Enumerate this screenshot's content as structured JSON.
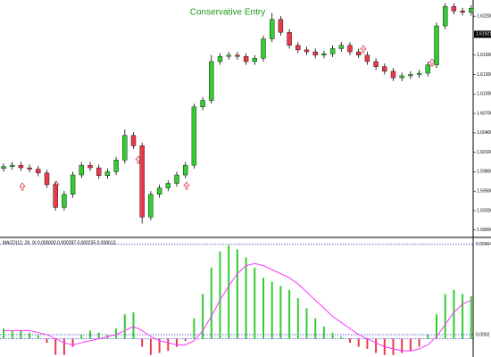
{
  "chart_data": [
    {
      "type": "candlestick",
      "annotation": "Conservative Entry",
      "open": [
        1.5985,
        1.5988,
        1.599,
        1.5986,
        1.5984,
        1.5978,
        1.596,
        1.5925,
        1.5945,
        1.5975,
        1.599,
        1.5986,
        1.5974,
        1.598,
        1.5998,
        1.6036,
        1.602,
        1.591,
        1.5945,
        1.5955,
        1.5962,
        1.5975,
        1.599,
        1.608,
        1.609,
        1.615,
        1.6158,
        1.616,
        1.6158,
        1.615,
        1.6155,
        1.6185,
        1.6215,
        1.6195,
        1.6175,
        1.6168,
        1.6165,
        1.616,
        1.6162,
        1.617,
        1.6175,
        1.6165,
        1.616,
        1.615,
        1.6142,
        1.6135,
        1.6125,
        1.6128,
        1.613,
        1.6132,
        1.6145,
        1.6205,
        1.6235,
        1.6228,
        1.6226
      ],
      "high": [
        1.5993,
        1.5995,
        1.5995,
        1.5991,
        1.5989,
        1.5983,
        1.5965,
        1.595,
        1.598,
        1.5995,
        1.5995,
        1.5991,
        1.5985,
        1.6003,
        1.6045,
        1.6041,
        1.6025,
        1.595,
        1.596,
        1.5967,
        1.598,
        1.5995,
        1.6085,
        1.6095,
        1.616,
        1.6163,
        1.6165,
        1.6165,
        1.6163,
        1.616,
        1.619,
        1.6225,
        1.622,
        1.62,
        1.618,
        1.6173,
        1.617,
        1.6167,
        1.6175,
        1.618,
        1.618,
        1.617,
        1.6165,
        1.6155,
        1.6147,
        1.614,
        1.6133,
        1.6135,
        1.6137,
        1.615,
        1.621,
        1.624,
        1.624,
        1.6233,
        1.6237
      ],
      "low": [
        1.598,
        1.5983,
        1.5981,
        1.5979,
        1.5973,
        1.5955,
        1.592,
        1.592,
        1.594,
        1.597,
        1.5981,
        1.5969,
        1.5969,
        1.5975,
        1.5993,
        1.6015,
        1.59,
        1.5905,
        1.594,
        1.595,
        1.5957,
        1.597,
        1.5985,
        1.6075,
        1.6085,
        1.6145,
        1.6153,
        1.6153,
        1.6145,
        1.6145,
        1.615,
        1.618,
        1.619,
        1.617,
        1.6163,
        1.616,
        1.6155,
        1.6155,
        1.6157,
        1.6165,
        1.616,
        1.6155,
        1.6145,
        1.6137,
        1.613,
        1.612,
        1.612,
        1.6123,
        1.6125,
        1.6127,
        1.614,
        1.62,
        1.6223,
        1.6221,
        1.6221
      ],
      "close": [
        1.5988,
        1.599,
        1.5986,
        1.5984,
        1.5978,
        1.596,
        1.5925,
        1.5945,
        1.5975,
        1.599,
        1.5986,
        1.5974,
        1.598,
        1.5998,
        1.6036,
        1.602,
        1.591,
        1.5945,
        1.5955,
        1.5962,
        1.5975,
        1.599,
        1.608,
        1.609,
        1.615,
        1.6158,
        1.616,
        1.6158,
        1.615,
        1.6155,
        1.6185,
        1.6215,
        1.6195,
        1.6175,
        1.6168,
        1.6165,
        1.616,
        1.6162,
        1.617,
        1.6175,
        1.6165,
        1.616,
        1.615,
        1.6142,
        1.6135,
        1.6125,
        1.6128,
        1.613,
        1.6132,
        1.6145,
        1.6205,
        1.6235,
        1.6228,
        1.6226,
        1.6232
      ],
      "up_color": "#33cc33",
      "down_color": "#e83a4a",
      "ylim": [
        1.588,
        1.6245
      ],
      "yticks": [
        {
          "value": 1.589,
          "label": "1.58900"
        },
        {
          "value": 1.592,
          "label": "1.59200"
        },
        {
          "value": 1.595,
          "label": "1.59500"
        },
        {
          "value": 1.598,
          "label": "1.59800"
        },
        {
          "value": 1.601,
          "label": "1.60100"
        },
        {
          "value": 1.604,
          "label": "1.60400"
        },
        {
          "value": 1.607,
          "label": "1.60700"
        },
        {
          "value": 1.61,
          "label": "1.61000"
        },
        {
          "value": 1.613,
          "label": "1.61300"
        },
        {
          "value": 1.616,
          "label": "1.61600"
        },
        {
          "value": 1.622,
          "label": "1.62200"
        }
      ],
      "price_marker": 1.61921
    },
    {
      "type": "macd",
      "label": "MACD(12, 26, 9) 0.000000 0.000287 0.000235 0.000613",
      "values": [
        0.0005,
        0.0004,
        0.0004,
        0.0003,
        0.0002,
        -0.0002,
        -0.0008,
        -0.0008,
        -0.0004,
        0.0002,
        0.0004,
        0.0003,
        0.0002,
        0.0005,
        0.0012,
        0.0013,
        -0.0004,
        -0.0008,
        -0.0007,
        -0.0006,
        -0.0004,
        -0.0001,
        0.001,
        0.0022,
        0.0035,
        0.0043,
        0.0046,
        0.0044,
        0.004,
        0.0035,
        0.003,
        0.0028,
        0.0026,
        0.0024,
        0.002,
        0.0015,
        0.001,
        0.0006,
        0.0003,
        0.0001,
        -0.0002,
        -0.0004,
        -0.0005,
        -0.0007,
        -0.0008,
        -0.0008,
        -0.0007,
        -0.0006,
        -0.0004,
        0.0002,
        0.0012,
        0.0022,
        0.0024,
        0.0022,
        0.0021
      ],
      "signal": [
        0.0004,
        0.0004,
        0.0004,
        0.0004,
        0.0003,
        0.0002,
        0,
        -0.0002,
        -0.0003,
        -0.0002,
        -0.0001,
        0,
        0.0001,
        0.0002,
        0.0004,
        0.0006,
        0.0004,
        0.0001,
        -0.0001,
        -0.0002,
        -0.0003,
        -0.0003,
        -0.0001,
        0.0004,
        0.0011,
        0.0019,
        0.0026,
        0.0032,
        0.0036,
        0.0037,
        0.0036,
        0.0034,
        0.0032,
        0.003,
        0.0027,
        0.0023,
        0.0019,
        0.0015,
        0.0011,
        0.0008,
        0.0005,
        0.0002,
        0,
        -0.0002,
        -0.0004,
        -0.0005,
        -0.0006,
        -0.0006,
        -0.0005,
        -0.0003,
        0.0001,
        0.0007,
        0.0013,
        0.0017,
        0.0019
      ],
      "color": "#33cc33",
      "negative_color": "#e83a4a",
      "signal_color": "#ff33ff",
      "ylim": [
        -0.0009,
        0.0049
      ],
      "yticks": [
        0.0002,
        0.004647
      ]
    }
  ]
}
